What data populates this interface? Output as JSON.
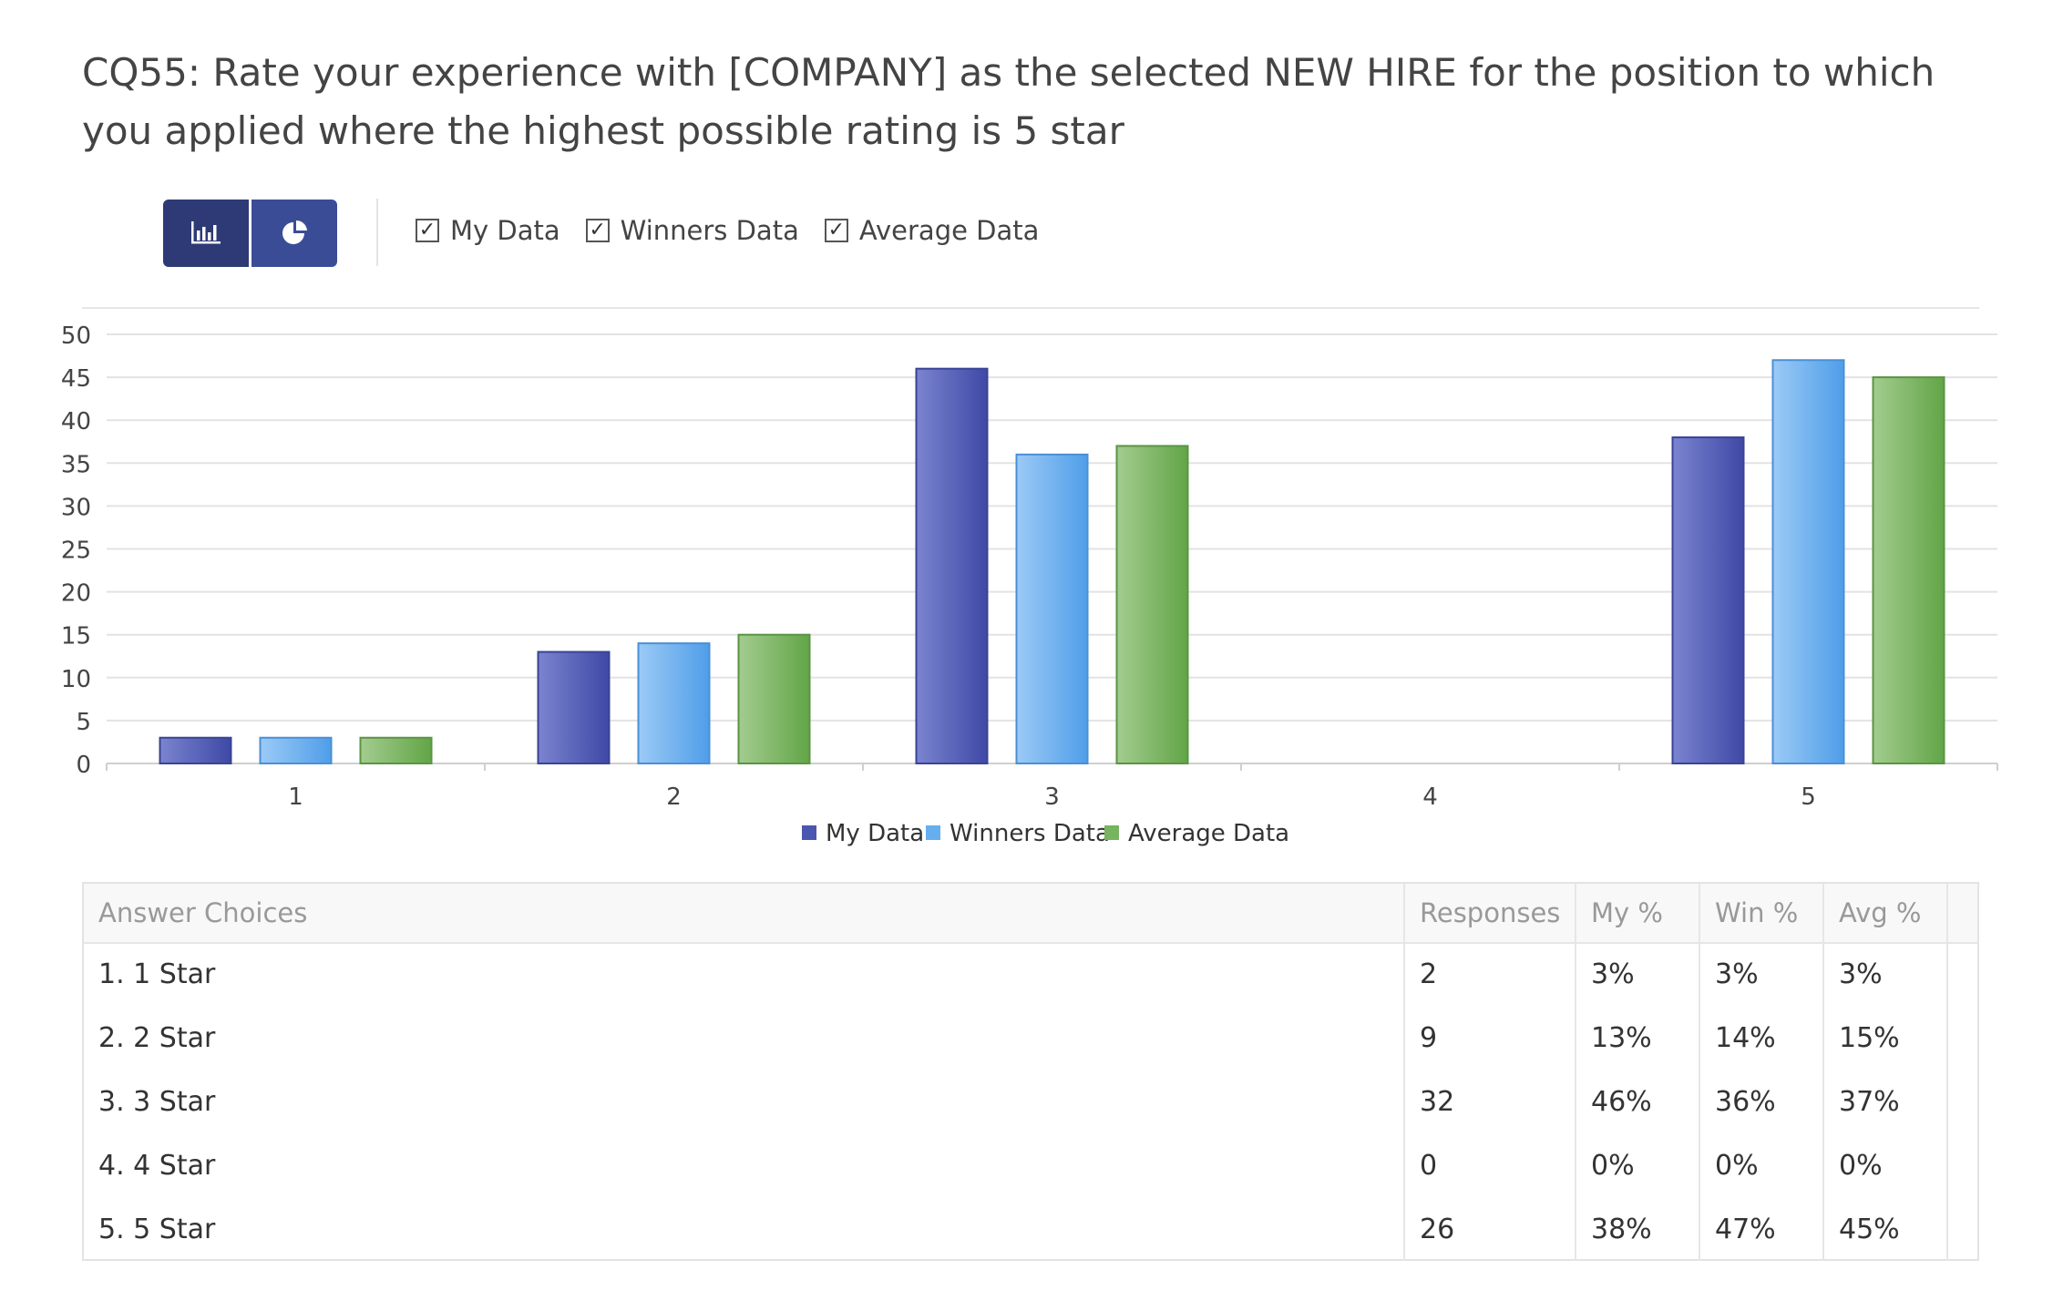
{
  "title": "CQ55: Rate your experience with [COMPANY] as the selected NEW HIRE for the position to which you applied where the highest possible rating is 5 star",
  "toolbar": {
    "buttons": [
      {
        "icon": "bar-chart-icon",
        "active": true
      },
      {
        "icon": "pie-chart-icon",
        "active": false
      }
    ],
    "checkboxes": [
      {
        "label": "My Data",
        "checked": true
      },
      {
        "label": "Winners Data",
        "checked": true
      },
      {
        "label": "Average Data",
        "checked": true
      }
    ]
  },
  "chart_data": {
    "type": "bar",
    "title": "",
    "xlabel": "",
    "ylabel": "",
    "categories": [
      "1",
      "2",
      "3",
      "4",
      "5"
    ],
    "ylim": [
      0,
      50
    ],
    "yticks": [
      0,
      5,
      10,
      15,
      20,
      25,
      30,
      35,
      40,
      45,
      50
    ],
    "grid": true,
    "legend_position": "bottom-center",
    "series": [
      {
        "name": "My Data",
        "values": [
          3,
          13,
          46,
          0,
          38
        ],
        "color": "#4b56b0"
      },
      {
        "name": "Winners Data",
        "values": [
          3,
          14,
          36,
          0,
          47
        ],
        "color": "#66aef0"
      },
      {
        "name": "Average Data",
        "values": [
          3,
          15,
          37,
          0,
          45
        ],
        "color": "#78b35f"
      }
    ]
  },
  "table": {
    "headers": [
      "Answer Choices",
      "Responses",
      "My %",
      "Win %",
      "Avg %"
    ],
    "rows": [
      [
        "1. 1 Star",
        "2",
        "3%",
        "3%",
        "3%"
      ],
      [
        "2. 2 Star",
        "9",
        "13%",
        "14%",
        "15%"
      ],
      [
        "3. 3 Star",
        "32",
        "46%",
        "36%",
        "37%"
      ],
      [
        "4. 4 Star",
        "0",
        "0%",
        "0%",
        "0%"
      ],
      [
        "5. 5 Star",
        "26",
        "38%",
        "47%",
        "45%"
      ]
    ]
  }
}
